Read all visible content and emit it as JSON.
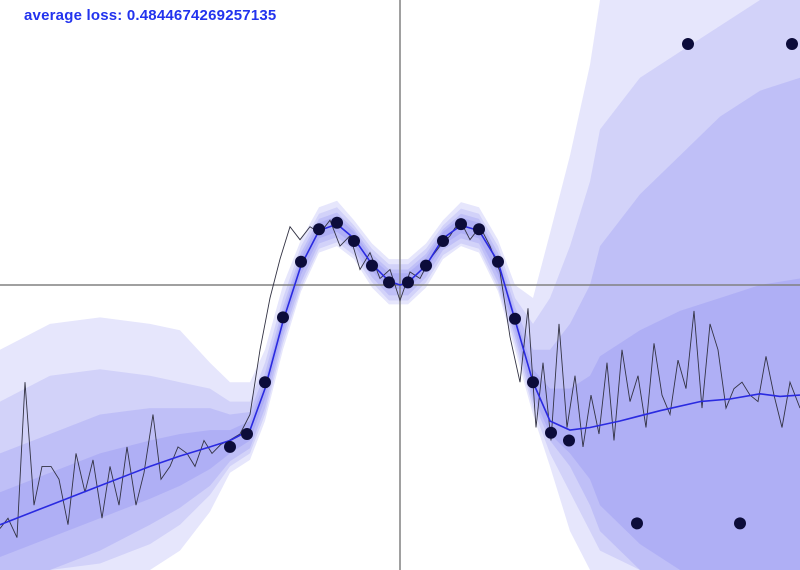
{
  "loss_label": "average loss: 0.4844674269257135",
  "colors": {
    "mean": "#2a2ae0",
    "sample": "#333344",
    "points": "#0c0c3a",
    "band": "#8c8cf2",
    "axis": "#808080"
  },
  "chart_data": {
    "type": "line",
    "title": "",
    "xlabel": "",
    "ylabel": "",
    "xlim": [
      -4,
      4
    ],
    "ylim": [
      -2.2,
      2.2
    ],
    "grid": false,
    "legend": "none",
    "observations": [
      {
        "x": -1.7,
        "y": -1.25
      },
      {
        "x": -1.53,
        "y": -1.15
      },
      {
        "x": -1.35,
        "y": -0.75
      },
      {
        "x": -1.17,
        "y": -0.25
      },
      {
        "x": -0.99,
        "y": 0.18
      },
      {
        "x": -0.81,
        "y": 0.43
      },
      {
        "x": -0.63,
        "y": 0.48
      },
      {
        "x": -0.46,
        "y": 0.34
      },
      {
        "x": -0.28,
        "y": 0.15
      },
      {
        "x": -0.11,
        "y": 0.02
      },
      {
        "x": 0.08,
        "y": 0.02
      },
      {
        "x": 0.26,
        "y": 0.15
      },
      {
        "x": 0.43,
        "y": 0.34
      },
      {
        "x": 0.61,
        "y": 0.47
      },
      {
        "x": 0.79,
        "y": 0.43
      },
      {
        "x": 0.98,
        "y": 0.18
      },
      {
        "x": 1.15,
        "y": -0.26
      },
      {
        "x": 1.33,
        "y": -0.75
      },
      {
        "x": 1.51,
        "y": -1.14
      },
      {
        "x": 1.69,
        "y": -1.2
      },
      {
        "x": 2.37,
        "y": -1.84
      },
      {
        "x": 2.88,
        "y": 1.86
      },
      {
        "x": 3.4,
        "y": -1.84
      },
      {
        "x": 3.92,
        "y": 1.86
      }
    ],
    "mean": {
      "x": [
        -4,
        -3.5,
        -3.0,
        -2.5,
        -2.2,
        -1.9,
        -1.7,
        -1.5,
        -1.35,
        -1.17,
        -0.99,
        -0.81,
        -0.63,
        -0.46,
        -0.28,
        -0.11,
        0.0,
        0.08,
        0.26,
        0.43,
        0.61,
        0.79,
        0.98,
        1.15,
        1.33,
        1.5,
        1.7,
        1.9,
        2.2,
        2.6,
        3.0,
        3.3,
        3.6,
        3.8,
        4.0
      ],
      "y": [
        -1.85,
        -1.7,
        -1.55,
        -1.4,
        -1.32,
        -1.25,
        -1.2,
        -1.12,
        -0.8,
        -0.28,
        0.15,
        0.42,
        0.47,
        0.36,
        0.16,
        0.03,
        0.0,
        0.02,
        0.15,
        0.36,
        0.46,
        0.42,
        0.18,
        -0.27,
        -0.75,
        -1.05,
        -1.12,
        -1.1,
        -1.05,
        -0.97,
        -0.9,
        -0.88,
        -0.84,
        -0.86,
        -0.85
      ]
    },
    "sample": {
      "x": [
        -4,
        -3.92,
        -3.83,
        -3.75,
        -3.66,
        -3.58,
        -3.49,
        -3.41,
        -3.32,
        -3.24,
        -3.15,
        -3.07,
        -2.98,
        -2.9,
        -2.81,
        -2.73,
        -2.64,
        -2.56,
        -2.47,
        -2.39,
        -2.3,
        -2.22,
        -2.13,
        -2.05,
        -1.96,
        -1.88,
        -1.79,
        -1.71,
        -1.6,
        -1.5,
        -1.4,
        -1.3,
        -1.2,
        -1.1,
        -1.0,
        -0.9,
        -0.8,
        -0.7,
        -0.6,
        -0.5,
        -0.4,
        -0.3,
        -0.2,
        -0.1,
        0.0,
        0.1,
        0.2,
        0.3,
        0.4,
        0.5,
        0.6,
        0.7,
        0.8,
        0.9,
        1.0,
        1.1,
        1.2,
        1.28,
        1.36,
        1.43,
        1.51,
        1.59,
        1.67,
        1.75,
        1.83,
        1.91,
        1.99,
        2.07,
        2.14,
        2.22,
        2.3,
        2.38,
        2.46,
        2.54,
        2.62,
        2.7,
        2.78,
        2.86,
        2.94,
        3.02,
        3.1,
        3.18,
        3.26,
        3.34,
        3.42,
        3.5,
        3.58,
        3.66,
        3.74,
        3.82,
        3.9,
        4.0
      ],
      "y": [
        -1.88,
        -1.8,
        -1.95,
        -0.75,
        -1.7,
        -1.4,
        -1.4,
        -1.5,
        -1.85,
        -1.3,
        -1.6,
        -1.35,
        -1.8,
        -1.4,
        -1.7,
        -1.25,
        -1.7,
        -1.45,
        -1.0,
        -1.5,
        -1.4,
        -1.25,
        -1.3,
        -1.4,
        -1.2,
        -1.3,
        -1.23,
        -1.2,
        -1.15,
        -1.0,
        -0.5,
        -0.1,
        0.2,
        0.45,
        0.35,
        0.45,
        0.4,
        0.5,
        0.3,
        0.38,
        0.12,
        0.25,
        0.05,
        0.12,
        -0.12,
        0.1,
        0.05,
        0.2,
        0.3,
        0.38,
        0.5,
        0.35,
        0.45,
        0.3,
        0.1,
        -0.4,
        -0.75,
        -0.18,
        -1.1,
        -0.6,
        -1.2,
        -0.3,
        -1.1,
        -0.7,
        -1.25,
        -0.85,
        -1.15,
        -0.6,
        -1.2,
        -0.5,
        -0.9,
        -0.7,
        -1.1,
        -0.45,
        -0.85,
        -1.0,
        -0.58,
        -0.8,
        -0.2,
        -0.95,
        -0.3,
        -0.5,
        -0.95,
        -0.8,
        -0.75,
        -0.85,
        -0.9,
        -0.55,
        -0.85,
        -1.1,
        -0.75,
        -0.95
      ]
    },
    "bands": [
      {
        "level": 4,
        "opacity": 0.22,
        "x": [
          -4,
          -3.5,
          -3.0,
          -2.5,
          -2.2,
          -1.9,
          -1.7,
          -1.5,
          -1.35,
          -1.17,
          -0.99,
          -0.81,
          -0.63,
          -0.46,
          -0.28,
          -0.11,
          0.08,
          0.26,
          0.43,
          0.61,
          0.79,
          0.98,
          1.15,
          1.33,
          1.5,
          1.7,
          1.9,
          2.0,
          2.4,
          2.8,
          3.2,
          3.6,
          4.0
        ],
        "upper": [
          -0.5,
          -0.3,
          -0.25,
          -0.3,
          -0.35,
          -0.6,
          -0.75,
          -0.75,
          -0.5,
          0.0,
          0.35,
          0.6,
          0.65,
          0.5,
          0.32,
          0.2,
          0.2,
          0.32,
          0.5,
          0.64,
          0.6,
          0.35,
          0.0,
          -0.1,
          0.4,
          1.0,
          1.7,
          2.2,
          2.2,
          2.2,
          2.2,
          2.2,
          2.2
        ],
        "lower": [
          -2.2,
          -2.2,
          -2.2,
          -2.2,
          -2.05,
          -1.75,
          -1.45,
          -1.35,
          -1.05,
          -0.5,
          -0.05,
          0.25,
          0.3,
          0.2,
          -0.02,
          -0.15,
          -0.15,
          -0.02,
          0.2,
          0.3,
          0.25,
          -0.05,
          -0.5,
          -1.0,
          -1.4,
          -1.9,
          -2.2,
          -2.2,
          -2.2,
          -2.2,
          -2.2,
          -2.2,
          -2.2
        ]
      },
      {
        "level": 3,
        "opacity": 0.22,
        "x": [
          -4,
          -3.5,
          -3.0,
          -2.5,
          -2.2,
          -1.9,
          -1.7,
          -1.5,
          -1.35,
          -1.17,
          -0.99,
          -0.81,
          -0.63,
          -0.46,
          -0.28,
          -0.11,
          0.08,
          0.26,
          0.43,
          0.61,
          0.79,
          0.98,
          1.15,
          1.33,
          1.5,
          1.7,
          1.9,
          2.0,
          2.4,
          2.8,
          3.2,
          3.6,
          4.0
        ],
        "upper": [
          -0.9,
          -0.7,
          -0.65,
          -0.7,
          -0.75,
          -0.8,
          -0.9,
          -0.9,
          -0.6,
          -0.1,
          0.3,
          0.55,
          0.6,
          0.46,
          0.28,
          0.16,
          0.16,
          0.28,
          0.46,
          0.59,
          0.55,
          0.3,
          -0.1,
          -0.3,
          -0.1,
          0.3,
          0.8,
          1.2,
          1.6,
          1.8,
          2.0,
          2.2,
          2.2
        ],
        "lower": [
          -2.2,
          -2.2,
          -2.15,
          -2.0,
          -1.85,
          -1.62,
          -1.4,
          -1.3,
          -1.0,
          -0.45,
          -0.02,
          0.28,
          0.33,
          0.23,
          0.02,
          -0.12,
          -0.12,
          0.02,
          0.23,
          0.32,
          0.28,
          -0.02,
          -0.45,
          -0.95,
          -1.3,
          -1.6,
          -1.9,
          -2.05,
          -2.2,
          -2.2,
          -2.2,
          -2.2,
          -2.2
        ]
      },
      {
        "level": 2,
        "opacity": 0.26,
        "x": [
          -4,
          -3.5,
          -3.0,
          -2.5,
          -2.2,
          -1.9,
          -1.7,
          -1.5,
          -1.35,
          -1.17,
          -0.99,
          -0.81,
          -0.63,
          -0.46,
          -0.28,
          -0.11,
          0.08,
          0.26,
          0.43,
          0.61,
          0.79,
          0.98,
          1.15,
          1.33,
          1.5,
          1.7,
          1.9,
          2.0,
          2.4,
          2.8,
          3.2,
          3.6,
          4.0
        ],
        "upper": [
          -1.3,
          -1.15,
          -1.0,
          -0.95,
          -0.95,
          -0.95,
          -1.0,
          -0.98,
          -0.68,
          -0.17,
          0.25,
          0.51,
          0.56,
          0.43,
          0.24,
          0.12,
          0.12,
          0.24,
          0.43,
          0.55,
          0.51,
          0.25,
          -0.17,
          -0.5,
          -0.5,
          -0.3,
          0.0,
          0.3,
          0.7,
          1.0,
          1.3,
          1.5,
          1.6
        ],
        "lower": [
          -2.2,
          -2.2,
          -2.05,
          -1.85,
          -1.72,
          -1.55,
          -1.36,
          -1.26,
          -0.95,
          -0.4,
          0.02,
          0.32,
          0.37,
          0.27,
          0.06,
          -0.08,
          -0.08,
          0.06,
          0.27,
          0.36,
          0.32,
          0.02,
          -0.4,
          -0.9,
          -1.2,
          -1.4,
          -1.7,
          -1.9,
          -2.2,
          -2.2,
          -2.2,
          -2.2,
          -2.2
        ]
      },
      {
        "level": 1,
        "opacity": 0.3,
        "x": [
          -4,
          -3.5,
          -3.0,
          -2.5,
          -2.2,
          -1.9,
          -1.7,
          -1.5,
          -1.35,
          -1.17,
          -0.99,
          -0.81,
          -0.63,
          -0.46,
          -0.28,
          -0.11,
          0.08,
          0.26,
          0.43,
          0.61,
          0.79,
          0.98,
          1.15,
          1.33,
          1.5,
          1.7,
          1.9,
          2.0,
          2.4,
          2.8,
          3.2,
          3.6,
          4.0
        ],
        "upper": [
          -1.6,
          -1.45,
          -1.3,
          -1.2,
          -1.15,
          -1.12,
          -1.12,
          -1.05,
          -0.74,
          -0.22,
          0.21,
          0.48,
          0.53,
          0.41,
          0.21,
          0.09,
          0.09,
          0.21,
          0.41,
          0.52,
          0.48,
          0.21,
          -0.22,
          -0.65,
          -0.8,
          -0.8,
          -0.7,
          -0.55,
          -0.35,
          -0.2,
          -0.1,
          0.0,
          0.05
        ],
        "lower": [
          -2.1,
          -1.95,
          -1.8,
          -1.65,
          -1.55,
          -1.42,
          -1.3,
          -1.2,
          -0.88,
          -0.35,
          0.08,
          0.36,
          0.41,
          0.31,
          0.11,
          -0.03,
          -0.03,
          0.11,
          0.31,
          0.4,
          0.36,
          0.08,
          -0.35,
          -0.85,
          -1.15,
          -1.3,
          -1.5,
          -1.7,
          -2.0,
          -2.2,
          -2.2,
          -2.2,
          -2.2
        ]
      }
    ]
  }
}
